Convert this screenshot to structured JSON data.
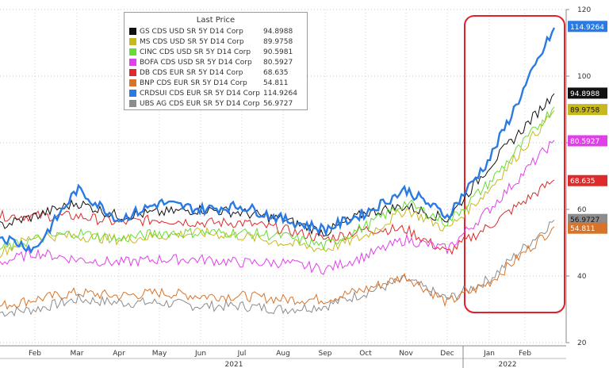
{
  "chart_data": {
    "type": "line",
    "legend_title": "Last Price",
    "legend_position": "top-left",
    "grid": true,
    "ylim": [
      20,
      120
    ],
    "y_ticks": [
      "20",
      "40",
      "60",
      "80",
      "100",
      "120"
    ],
    "x_ticks": [
      "Feb",
      "Mar",
      "Apr",
      "May",
      "Jun",
      "Jul",
      "Aug",
      "Sep",
      "Oct",
      "Nov",
      "Dec",
      "Jan",
      "Feb"
    ],
    "year_labels": [
      "2021",
      "2022"
    ],
    "highlight": {
      "from": "Jan",
      "to": "Feb",
      "color": "#e0202a"
    },
    "series": [
      {
        "name": "GS CDS USD SR 5Y D14 Corp",
        "last": "94.8988",
        "color": "#111111",
        "values": [
          55,
          58,
          62,
          58,
          59,
          60,
          59,
          57,
          53,
          59,
          61,
          57,
          73,
          95
        ]
      },
      {
        "name": "MS CDS USD SR 5Y D14 Corp",
        "last": "89.9758",
        "color": "#c8b820",
        "values": [
          47,
          52,
          52,
          51,
          52,
          53,
          52,
          50,
          48,
          52,
          60,
          54,
          66,
          90
        ]
      },
      {
        "name": "CINC CDS USD SR 5Y D14 Corp",
        "last": "90.5981",
        "color": "#66dd33",
        "values": [
          48,
          51,
          53,
          51,
          53,
          53,
          53,
          52,
          49,
          55,
          62,
          56,
          68,
          91
        ]
      },
      {
        "name": "BOFA CDS USD SR 5Y D14 Corp",
        "last": "80.5927",
        "color": "#e040e8",
        "values": [
          44,
          47,
          45,
          44,
          45,
          45,
          44,
          44,
          42,
          46,
          51,
          48,
          60,
          81
        ]
      },
      {
        "name": "DB CDS EUR SR 5Y D14 Corp",
        "last": "68.635",
        "color": "#dd2a2a",
        "values": [
          58,
          58,
          58,
          56,
          57,
          56,
          56,
          54,
          51,
          54,
          54,
          47,
          55,
          69
        ]
      },
      {
        "name": "BNP CDS EUR SR 5Y D14 Corp",
        "last": "54.811",
        "color": "#d8742a",
        "values": [
          31,
          33,
          35,
          34,
          35,
          34,
          34,
          33,
          33,
          36,
          40,
          32,
          38,
          55
        ]
      },
      {
        "name": "CRDSUI CDS EUR SR 5Y D14 Corp",
        "last": "114.9264",
        "color": "#2a7ae4",
        "values": [
          52,
          48,
          66,
          57,
          62,
          60,
          61,
          57,
          54,
          59,
          66,
          58,
          75,
          115
        ]
      },
      {
        "name": "UBS AG CDS EUR SR 5Y D14 Corp",
        "last": "56.9727",
        "color": "#8c8c8c",
        "values": [
          29,
          30,
          33,
          32,
          32,
          31,
          31,
          30,
          31,
          35,
          39,
          33,
          39,
          57
        ]
      }
    ]
  }
}
